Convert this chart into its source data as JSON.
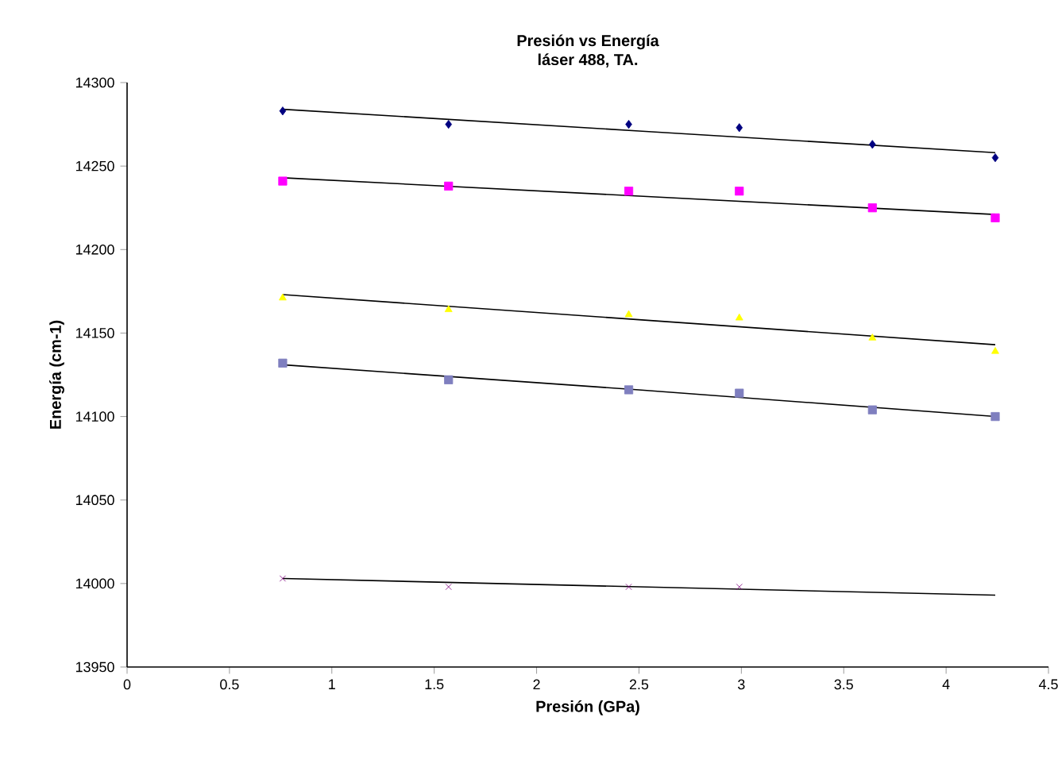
{
  "chart_data": {
    "type": "scatter",
    "title": "Presión vs Energía",
    "subtitle": "láser 488, TA.",
    "xlabel": "Presión (GPa)",
    "ylabel": "Energía (cm-1)",
    "x": [
      0.76,
      1.57,
      2.45,
      2.99,
      3.64,
      4.24
    ],
    "series": [
      {
        "color": "#000080",
        "marker": "diamond",
        "values": [
          14283,
          14275,
          14275,
          14273,
          14263,
          14255
        ]
      },
      {
        "color": "#ff00ff",
        "marker": "square",
        "values": [
          14241,
          14238,
          14235,
          14235,
          14225,
          14219
        ]
      },
      {
        "color": "#ffff00",
        "marker": "triangle",
        "values": [
          14171,
          14164,
          14161,
          14159,
          14147,
          14139
        ]
      },
      {
        "color": "#7f7fbf",
        "marker": "square",
        "values": [
          14132,
          14122,
          14116,
          14114,
          14104,
          14100
        ]
      },
      {
        "color": "#800080",
        "marker": "cross",
        "values": [
          14003,
          13998,
          13998,
          13998,
          null,
          null
        ]
      },
      {
        "type": "line",
        "color": "#000000",
        "x": [
          0.76,
          2.5,
          4.24
        ],
        "values": [
          14284,
          14271,
          14258
        ]
      },
      {
        "type": "line",
        "color": "#000000",
        "x": [
          0.76,
          2.5,
          4.24
        ],
        "values": [
          14243,
          14232,
          14221
        ]
      },
      {
        "type": "line",
        "color": "#000000",
        "x": [
          0.76,
          2.5,
          4.24
        ],
        "values": [
          14173,
          14158,
          14143
        ]
      },
      {
        "type": "line",
        "color": "#000000",
        "x": [
          0.76,
          2.5,
          4.24
        ],
        "values": [
          14131,
          14116,
          14100
        ]
      },
      {
        "type": "line",
        "color": "#000000",
        "x": [
          0.76,
          2.5,
          4.24
        ],
        "values": [
          14003,
          13998,
          13993
        ]
      }
    ],
    "xlim": [
      0,
      4.5
    ],
    "xticks": [
      0,
      0.5,
      1,
      1.5,
      2,
      2.5,
      3,
      3.5,
      4,
      4.5
    ],
    "ylim": [
      13950,
      14300
    ],
    "yticks": [
      13950,
      14000,
      14050,
      14100,
      14150,
      14200,
      14250,
      14300
    ],
    "grid": false
  }
}
